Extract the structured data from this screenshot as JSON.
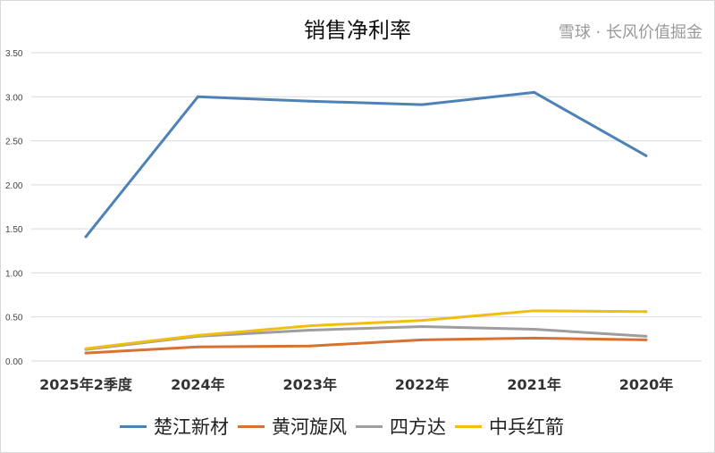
{
  "chart_data": {
    "type": "line",
    "title": "销售净利率",
    "categories": [
      "2025年2季度",
      "2024年",
      "2023年",
      "2022年",
      "2021年",
      "2020年"
    ],
    "ylim": [
      0,
      3.5
    ],
    "yticks": [
      "0.00",
      "0.50",
      "1.00",
      "1.50",
      "2.00",
      "2.50",
      "3.00",
      "3.50"
    ],
    "grid": true,
    "legend_position": "bottom",
    "series": [
      {
        "name": "楚江新材",
        "color": "#4e81b5",
        "values": [
          1.41,
          3.0,
          2.95,
          2.91,
          3.05,
          2.33
        ]
      },
      {
        "name": "黄河旋风",
        "color": "#d7722f",
        "values": [
          0.09,
          0.16,
          0.17,
          0.24,
          0.26,
          0.24
        ]
      },
      {
        "name": "四方达",
        "color": "#9e9e9e",
        "values": [
          0.13,
          0.28,
          0.35,
          0.39,
          0.36,
          0.28
        ]
      },
      {
        "name": "中兵红箭",
        "color": "#f0be0f",
        "values": [
          0.14,
          0.29,
          0.4,
          0.46,
          0.57,
          0.56
        ]
      }
    ]
  },
  "watermark": "雪球 · 长风价值掘金"
}
